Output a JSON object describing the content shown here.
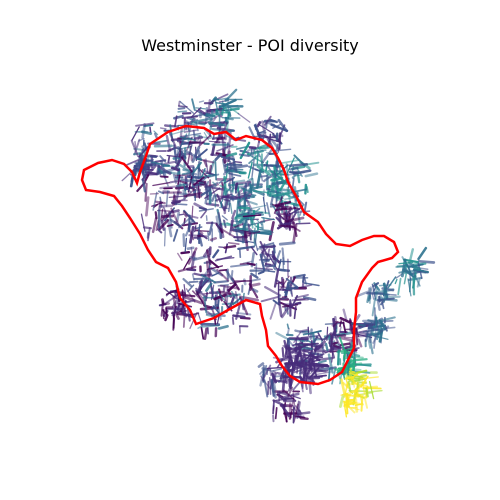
{
  "figure": {
    "title": "Westminster - POI diversity"
  },
  "map": {
    "boundary_color": "#ff0000",
    "colormap": "viridis",
    "network_colors": [
      "#440154",
      "#472c7a",
      "#3b518b",
      "#2c718e",
      "#21908d",
      "#27ad81",
      "#5cc863",
      "#aadc32",
      "#fde725"
    ]
  }
}
